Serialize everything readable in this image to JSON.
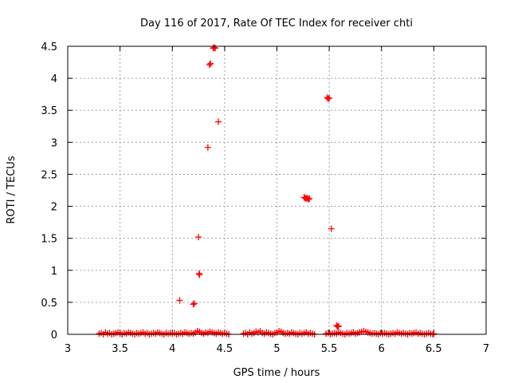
{
  "chart_data": {
    "type": "scatter",
    "title": "Day 116 of 2017, Rate Of TEC Index for receiver chti",
    "xlabel": "GPS time / hours",
    "ylabel": "ROTI / TECUs",
    "xlim": [
      3,
      7
    ],
    "ylim": [
      0,
      4.5
    ],
    "xticks": [
      3,
      3.5,
      4,
      4.5,
      5,
      5.5,
      6,
      6.5,
      7
    ],
    "xtick_labels": [
      "3",
      "3.5",
      "4",
      "4.5",
      "5",
      "5.5",
      "6",
      "6.5",
      "7"
    ],
    "yticks": [
      0,
      0.5,
      1,
      1.5,
      2,
      2.5,
      3,
      3.5,
      4,
      4.5
    ],
    "ytick_labels": [
      "0",
      "0.5",
      "1",
      "1.5",
      "2",
      "2.5",
      "3",
      "3.5",
      "4",
      "4.5"
    ],
    "grid": true,
    "marker": "+",
    "marker_color": "#ff0000",
    "series": [
      {
        "name": "ROTI",
        "x": [
          3.3,
          3.32,
          3.34,
          3.36,
          3.38,
          3.4,
          3.42,
          3.44,
          3.46,
          3.48,
          3.5,
          3.52,
          3.54,
          3.56,
          3.58,
          3.6,
          3.62,
          3.64,
          3.66,
          3.68,
          3.7,
          3.72,
          3.74,
          3.76,
          3.78,
          3.8,
          3.82,
          3.84,
          3.86,
          3.88,
          3.9,
          3.92,
          3.94,
          3.96,
          3.98,
          4.0,
          4.02,
          4.04,
          4.06,
          4.08,
          4.1,
          4.12,
          4.14,
          4.16,
          4.18,
          4.2,
          4.22,
          4.24,
          4.26,
          4.28,
          4.3,
          4.32,
          4.34,
          4.36,
          4.38,
          4.4,
          4.42,
          4.44,
          4.46,
          4.48,
          4.5,
          4.52,
          4.54,
          4.68,
          4.7,
          4.72,
          4.74,
          4.76,
          4.78,
          4.8,
          4.82,
          4.84,
          4.86,
          4.88,
          4.9,
          4.92,
          4.94,
          4.96,
          4.98,
          5.0,
          5.02,
          5.04,
          5.06,
          5.08,
          5.1,
          5.12,
          5.14,
          5.16,
          5.18,
          5.2,
          5.22,
          5.24,
          5.26,
          5.28,
          5.3,
          5.32,
          5.34,
          5.36,
          5.47,
          5.49,
          5.51,
          5.53,
          5.55,
          5.57,
          5.59,
          5.61,
          5.63,
          5.65,
          5.67,
          5.69,
          5.71,
          5.73,
          5.75,
          5.77,
          5.79,
          5.81,
          5.83,
          5.85,
          5.87,
          5.89,
          5.91,
          5.93,
          5.95,
          5.97,
          5.99,
          6.01,
          6.03,
          6.05,
          6.07,
          6.09,
          6.11,
          6.13,
          6.15,
          6.17,
          6.19,
          6.21,
          6.23,
          6.25,
          6.27,
          6.29,
          6.31,
          6.33,
          6.35,
          6.37,
          6.39,
          6.41,
          6.43,
          6.45,
          6.47,
          6.49,
          6.5,
          4.39,
          4.4,
          4.41,
          4.355,
          4.365,
          4.44,
          4.34,
          4.25,
          4.255,
          4.26,
          4.07,
          4.2,
          4.21,
          5.26,
          5.27,
          5.28,
          5.29,
          5.3,
          5.31,
          5.48,
          5.49,
          5.5,
          5.52,
          5.57,
          5.58,
          5.59
        ],
        "y": [
          0.01,
          0.02,
          0.0,
          0.03,
          0.01,
          0.02,
          0.0,
          0.01,
          0.02,
          0.03,
          0.01,
          0.0,
          0.02,
          0.01,
          0.03,
          0.02,
          0.01,
          0.0,
          0.02,
          0.01,
          0.02,
          0.03,
          0.01,
          0.02,
          0.0,
          0.01,
          0.02,
          0.01,
          0.03,
          0.02,
          0.01,
          0.0,
          0.02,
          0.01,
          0.02,
          0.01,
          0.02,
          0.0,
          0.01,
          0.02,
          0.01,
          0.03,
          0.02,
          0.01,
          0.02,
          0.01,
          0.03,
          0.05,
          0.04,
          0.02,
          0.01,
          0.03,
          0.02,
          0.04,
          0.03,
          0.02,
          0.01,
          0.03,
          0.02,
          0.01,
          0.02,
          0.01,
          0.0,
          0.01,
          0.02,
          0.0,
          0.03,
          0.01,
          0.02,
          0.04,
          0.03,
          0.05,
          0.02,
          0.01,
          0.03,
          0.02,
          0.01,
          0.0,
          0.02,
          0.03,
          0.05,
          0.04,
          0.02,
          0.01,
          0.02,
          0.01,
          0.03,
          0.02,
          0.01,
          0.0,
          0.02,
          0.01,
          0.02,
          0.03,
          0.01,
          0.02,
          0.01,
          0.0,
          0.01,
          0.02,
          0.0,
          0.01,
          0.02,
          0.01,
          0.03,
          0.02,
          0.01,
          0.0,
          0.02,
          0.01,
          0.02,
          0.03,
          0.01,
          0.02,
          0.03,
          0.04,
          0.05,
          0.04,
          0.03,
          0.02,
          0.01,
          0.02,
          0.01,
          0.0,
          0.02,
          0.01,
          0.02,
          0.01,
          0.0,
          0.01,
          0.02,
          0.01,
          0.03,
          0.02,
          0.01,
          0.02,
          0.01,
          0.0,
          0.02,
          0.01,
          0.02,
          0.03,
          0.01,
          0.02,
          0.01,
          0.0,
          0.01,
          0.02,
          0.01,
          0.0,
          0.01,
          4.47,
          4.48,
          4.47,
          4.21,
          4.23,
          3.32,
          2.92,
          1.52,
          0.95,
          0.93,
          0.53,
          0.47,
          0.48,
          2.14,
          2.13,
          2.12,
          2.13,
          2.11,
          2.12,
          3.7,
          3.68,
          3.69,
          1.65,
          0.14,
          0.12,
          0.13
        ]
      }
    ]
  }
}
